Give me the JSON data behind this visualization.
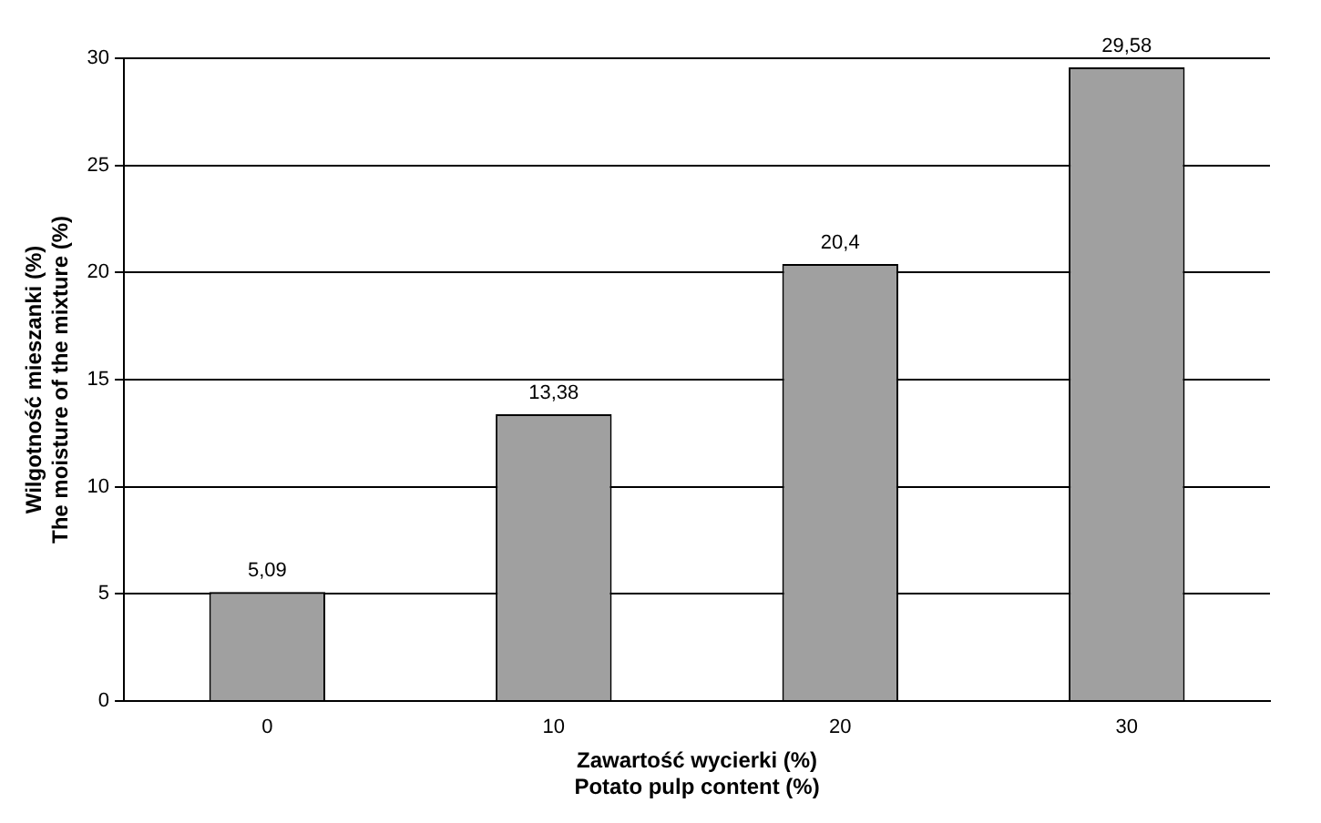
{
  "chart_data": {
    "type": "bar",
    "xlabel": "Zawartość wycierki (%)\nPotato pulp content (%)",
    "ylabel": "Wilgotność mieszanki (%)\nThe moisture of the mixture (%)",
    "categories": [
      "0",
      "10",
      "20",
      "30"
    ],
    "values": [
      5.09,
      13.38,
      20.4,
      29.58
    ],
    "value_labels": [
      "5,09",
      "13,38",
      "20,4",
      "29,58"
    ],
    "color": "#a0a0a0",
    "ylim": [
      0,
      30
    ],
    "yticks": [
      0,
      5,
      10,
      15,
      20,
      25,
      30
    ],
    "grid": "y",
    "legend": false
  }
}
